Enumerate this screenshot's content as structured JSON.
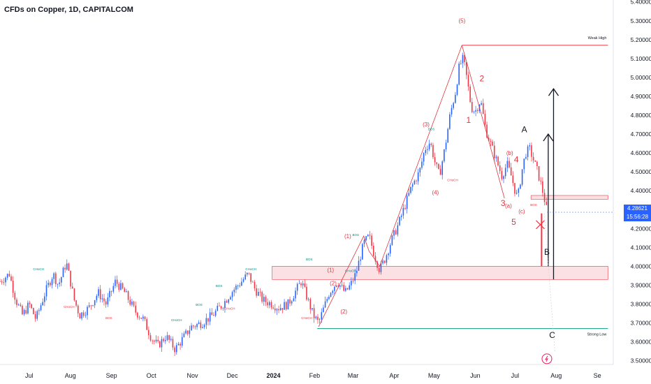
{
  "header": {
    "title": "CFDs on Copper, 1D, CAPITALCOM"
  },
  "price_badge": {
    "price": "4.28621",
    "countdown": "15:56:28"
  },
  "colors": {
    "up": "#2962ff",
    "down": "#f23645",
    "wave": "#e0343f",
    "teal": "#089981",
    "zone": "#f7c9cc",
    "label_teal": "#00897b"
  },
  "chart_data": {
    "type": "candlestick",
    "yaxis": {
      "ticks": [
        "3.50000",
        "3.60000",
        "3.70000",
        "3.80000",
        "3.90000",
        "4.00000",
        "4.10000",
        "4.20000",
        "4.30000",
        "4.40000",
        "4.50000",
        "4.60000",
        "4.70000",
        "4.80000",
        "4.90000",
        "5.00000",
        "5.10000",
        "5.20000",
        "5.30000",
        "5.40000"
      ],
      "range": [
        3.48,
        5.41
      ]
    },
    "xaxis": {
      "ticks": [
        "Jul",
        "Aug",
        "Sep",
        "Oct",
        "Nov",
        "Dec",
        "2024",
        "Feb",
        "Mar",
        "Apr",
        "May",
        "Jun",
        "Jul",
        "Aug",
        "Se"
      ],
      "tick_days": [
        0,
        31,
        62,
        92,
        123,
        153,
        184,
        215,
        244,
        275,
        305,
        336,
        366,
        397,
        428
      ],
      "day_range": [
        -22,
        440
      ]
    },
    "path": [
      [
        -22,
        3.92
      ],
      [
        -15,
        3.96
      ],
      [
        -10,
        3.82
      ],
      [
        -5,
        3.74
      ],
      [
        0,
        3.8
      ],
      [
        5,
        3.72
      ],
      [
        12,
        3.86
      ],
      [
        18,
        3.96
      ],
      [
        22,
        3.9
      ],
      [
        28,
        4.02
      ],
      [
        34,
        3.82
      ],
      [
        38,
        3.74
      ],
      [
        45,
        3.78
      ],
      [
        52,
        3.86
      ],
      [
        58,
        3.8
      ],
      [
        65,
        3.92
      ],
      [
        72,
        3.86
      ],
      [
        80,
        3.76
      ],
      [
        86,
        3.72
      ],
      [
        92,
        3.62
      ],
      [
        97,
        3.58
      ],
      [
        103,
        3.63
      ],
      [
        110,
        3.56
      ],
      [
        116,
        3.62
      ],
      [
        122,
        3.68
      ],
      [
        130,
        3.7
      ],
      [
        138,
        3.74
      ],
      [
        146,
        3.8
      ],
      [
        152,
        3.86
      ],
      [
        160,
        3.92
      ],
      [
        165,
        3.96
      ],
      [
        170,
        3.88
      ],
      [
        176,
        3.82
      ],
      [
        183,
        3.8
      ],
      [
        188,
        3.78
      ],
      [
        195,
        3.8
      ],
      [
        200,
        3.86
      ],
      [
        205,
        3.92
      ],
      [
        210,
        3.82
      ],
      [
        214,
        3.74
      ],
      [
        218,
        3.7
      ],
      [
        222,
        3.78
      ],
      [
        226,
        3.86
      ],
      [
        232,
        3.92
      ],
      [
        238,
        3.86
      ],
      [
        242,
        3.9
      ],
      [
        246,
        3.96
      ],
      [
        252,
        4.12
      ],
      [
        256,
        4.16
      ],
      [
        260,
        4.06
      ],
      [
        264,
        3.98
      ],
      [
        268,
        4.04
      ],
      [
        272,
        4.12
      ],
      [
        278,
        4.22
      ],
      [
        283,
        4.32
      ],
      [
        288,
        4.42
      ],
      [
        294,
        4.5
      ],
      [
        298,
        4.62
      ],
      [
        302,
        4.66
      ],
      [
        306,
        4.54
      ],
      [
        309,
        4.48
      ],
      [
        313,
        4.62
      ],
      [
        317,
        4.8
      ],
      [
        321,
        4.92
      ],
      [
        324,
        5.06
      ],
      [
        327,
        5.1
      ],
      [
        330,
        4.98
      ],
      [
        333,
        4.84
      ],
      [
        336,
        4.82
      ],
      [
        340,
        4.88
      ],
      [
        344,
        4.72
      ],
      [
        348,
        4.64
      ],
      [
        352,
        4.56
      ],
      [
        356,
        4.48
      ],
      [
        360,
        4.54
      ],
      [
        363,
        4.48
      ],
      [
        366,
        4.4
      ],
      [
        368,
        4.36
      ],
      [
        371,
        4.5
      ],
      [
        374,
        4.6
      ],
      [
        377,
        4.62
      ],
      [
        380,
        4.56
      ],
      [
        383,
        4.5
      ],
      [
        386,
        4.42
      ],
      [
        388,
        4.36
      ],
      [
        390,
        4.29
      ]
    ],
    "overlays": {
      "zones": [
        {
          "x1": 183,
          "x2": 436,
          "y1": 3.93,
          "y2": 4.0
        },
        {
          "x1": 378,
          "x2": 436,
          "y1": 4.355,
          "y2": 4.375
        }
      ],
      "levels": [
        {
          "label": "Weak High",
          "y": 5.17,
          "x1": 326,
          "x2": 436,
          "color": "#e0343f"
        },
        {
          "label": "Strong Low",
          "y": 3.67,
          "x1": 217,
          "x2": 436,
          "color": "#089981"
        }
      ]
    },
    "wave_labels": [
      {
        "text": "(5)",
        "x": 326,
        "y": 5.29
      },
      {
        "text": "2",
        "x": 341,
        "y": 4.98
      },
      {
        "text": "1",
        "x": 331,
        "y": 4.76
      },
      {
        "text": "(3)",
        "x": 299,
        "y": 4.74
      },
      {
        "text": "(4)",
        "x": 306,
        "y": 4.38
      },
      {
        "text": "(b)",
        "x": 362,
        "y": 4.59
      },
      {
        "text": "4",
        "x": 367,
        "y": 4.55
      },
      {
        "text": "3",
        "x": 357,
        "y": 4.32
      },
      {
        "text": "(a)",
        "x": 361,
        "y": 4.31
      },
      {
        "text": "(c)",
        "x": 371,
        "y": 4.28
      },
      {
        "text": "5",
        "x": 365,
        "y": 4.22
      },
      {
        "text": "(1)",
        "x": 240,
        "y": 4.15
      },
      {
        "text": "(1)",
        "x": 227,
        "y": 3.97
      },
      {
        "text": "(2)",
        "x": 229,
        "y": 3.9
      },
      {
        "text": "(2)",
        "x": 237,
        "y": 3.75
      }
    ],
    "black_labels": [
      {
        "text": "A",
        "x": 373,
        "y": 4.71
      },
      {
        "text": "B",
        "x": 390,
        "y": 4.06
      },
      {
        "text": "C",
        "x": 394,
        "y": 3.62
      }
    ],
    "small_labels": [
      {
        "text": "BOS",
        "x": 211,
        "y": 4.03,
        "color": "#00897b"
      },
      {
        "text": "BOS",
        "x": 246,
        "y": 4.16,
        "color": "#00897b"
      },
      {
        "text": "BOS",
        "x": 303,
        "y": 4.72,
        "color": "#00897b"
      },
      {
        "text": "CHoCH",
        "x": 242,
        "y": 3.97,
        "color": "#00897b"
      },
      {
        "text": "CHoCH",
        "x": 319,
        "y": 4.45,
        "color": "#e0343f"
      },
      {
        "text": "BOS",
        "x": 380,
        "y": 4.32,
        "color": "#e0343f"
      },
      {
        "text": "CHoCH",
        "x": 7,
        "y": 3.98,
        "color": "#00897b"
      },
      {
        "text": "CHoCH",
        "x": 30,
        "y": 3.78,
        "color": "#e0343f"
      },
      {
        "text": "BOS",
        "x": 60,
        "y": 3.72,
        "color": "#e0343f"
      },
      {
        "text": "CHoCH",
        "x": 111,
        "y": 3.71,
        "color": "#00897b"
      },
      {
        "text": "BOS",
        "x": 128,
        "y": 3.79,
        "color": "#00897b"
      },
      {
        "text": "BOS",
        "x": 143,
        "y": 3.89,
        "color": "#00897b"
      },
      {
        "text": "CHoCH",
        "x": 167,
        "y": 3.98,
        "color": "#00897b"
      },
      {
        "text": "CHoCH",
        "x": 151,
        "y": 3.77,
        "color": "#e0343f"
      },
      {
        "text": "CHoCH",
        "x": 209,
        "y": 3.72,
        "color": "#e0343f"
      }
    ]
  }
}
